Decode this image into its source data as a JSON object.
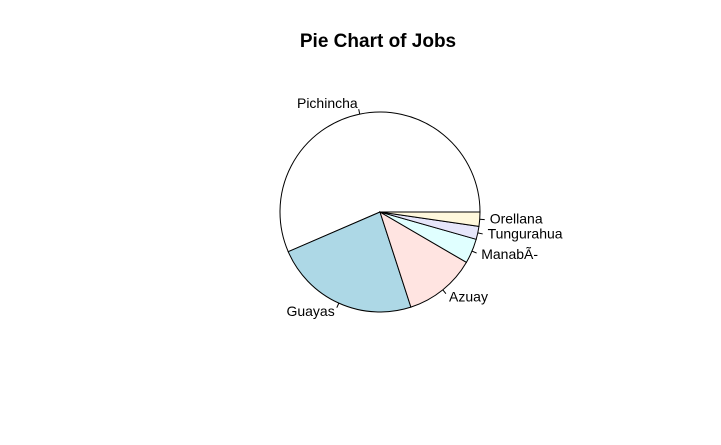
{
  "chart_data": {
    "type": "pie",
    "title": "Pie Chart of Jobs",
    "categories": [
      "Pichincha",
      "Guayas",
      "Azuay",
      "ManabÃ-",
      "Tungurahua",
      "Orellana"
    ],
    "values": [
      56.5,
      23.5,
      11.6,
      4.0,
      2.1,
      2.3
    ],
    "colors": [
      "#FFFFFF",
      "#ADD8E6",
      "#FFE4E1",
      "#E0FFFF",
      "#E6E6FA",
      "#FFF8DC"
    ],
    "start_angle": "3 o'clock",
    "direction": "counterclockwise"
  }
}
